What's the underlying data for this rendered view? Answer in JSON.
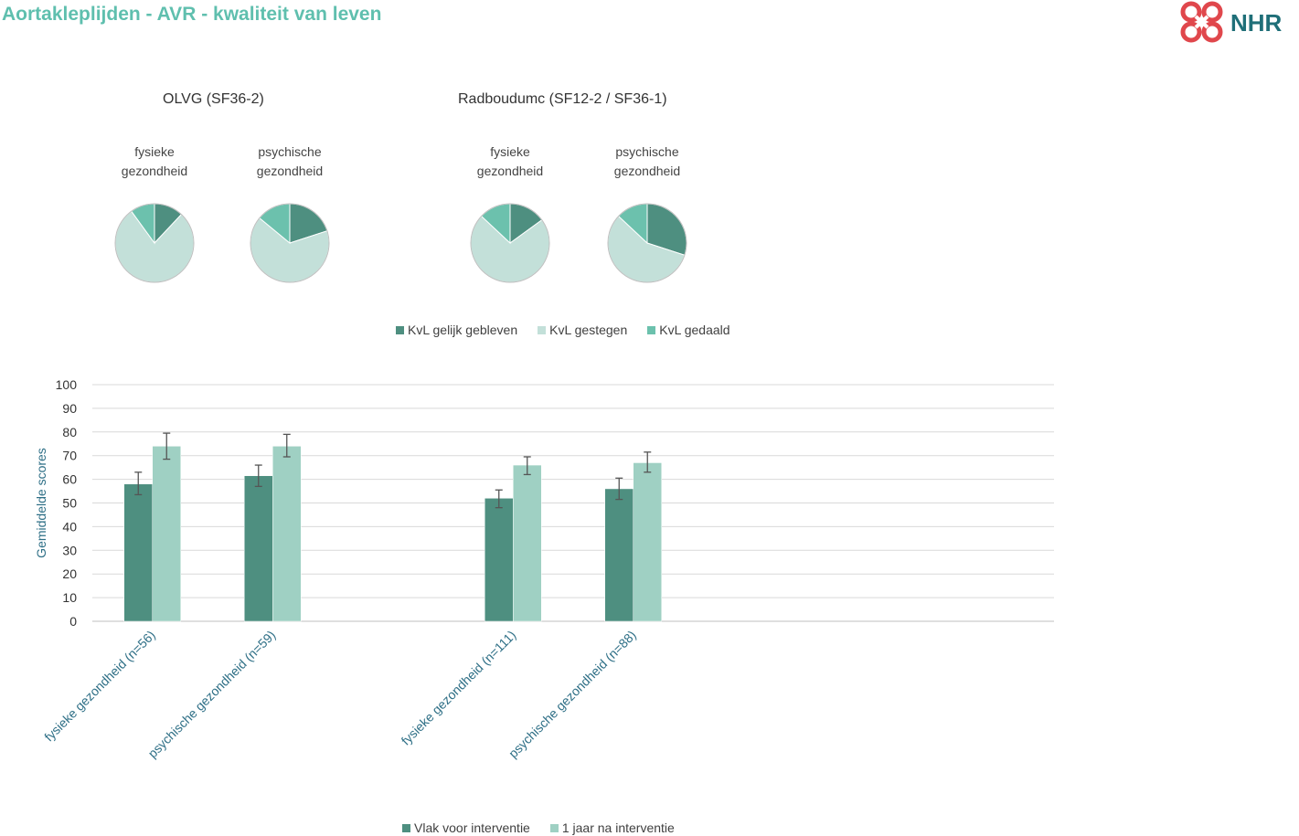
{
  "header": {
    "title": "Aortakleplijden - AVR - kwaliteit van leven",
    "logo_text": "NHR"
  },
  "colors": {
    "title": "#5fbfae",
    "gelijk": "#4e8f80",
    "gestegen": "#c3e0d9",
    "gedaald": "#6cc1ad",
    "voor": "#4e8f80",
    "na": "#9fd0c3",
    "logo_red": "#e0474c",
    "logo_teal": "#1f6f78"
  },
  "chart_data": [
    {
      "type": "pie",
      "group": "OLVG (SF36-2)",
      "title": "fysieke gezondheid",
      "labels": [
        "KvL gelijk gebleven",
        "KvL gestegen",
        "KvL gedaald"
      ],
      "values": [
        12,
        78,
        10
      ]
    },
    {
      "type": "pie",
      "group": "OLVG (SF36-2)",
      "title": "psychische gezondheid",
      "labels": [
        "KvL gelijk gebleven",
        "KvL gestegen",
        "KvL gedaald"
      ],
      "values": [
        20,
        66,
        14
      ]
    },
    {
      "type": "pie",
      "group": "Radboudumc (SF12-2 / SF36-1)",
      "title": "fysieke gezondheid",
      "labels": [
        "KvL gelijk gebleven",
        "KvL gestegen",
        "KvL gedaald"
      ],
      "values": [
        15,
        72,
        13
      ]
    },
    {
      "type": "pie",
      "group": "Radboudumc (SF12-2 / SF36-1)",
      "title": "psychische gezondheid",
      "labels": [
        "KvL gelijk gebleven",
        "KvL gestegen",
        "KvL gedaald"
      ],
      "values": [
        30,
        57,
        13
      ]
    },
    {
      "type": "bar",
      "categories": [
        "fysieke gezondheid (n=56)",
        "psychische gezondheid (n=59)",
        "",
        "fysieke gezondheid (n=111)",
        "psychische gezondheid (n=88)",
        "",
        "",
        ""
      ],
      "series": [
        {
          "name": "Vlak voor interventie",
          "values": [
            58,
            61.5,
            null,
            52,
            56,
            null,
            null,
            null
          ],
          "err": [
            [
              53.5,
              63
            ],
            [
              57,
              66
            ],
            null,
            [
              48,
              55.5
            ],
            [
              51.5,
              60.5
            ],
            null,
            null,
            null
          ]
        },
        {
          "name": "1 jaar na interventie",
          "values": [
            74,
            74,
            null,
            66,
            67,
            null,
            null,
            null
          ],
          "err": [
            [
              68.5,
              79.5
            ],
            [
              69.5,
              79
            ],
            null,
            [
              62,
              69.5
            ],
            [
              63,
              71.5
            ],
            null,
            null,
            null
          ]
        }
      ],
      "ylabel": "Gemiddelde scores",
      "xlabel": "",
      "ylim": [
        0,
        100
      ],
      "yticks": [
        0,
        10,
        20,
        30,
        40,
        50,
        60,
        70,
        80,
        90,
        100
      ],
      "grid": true,
      "legend": "bottom"
    }
  ],
  "pie_groups": [
    "OLVG (SF36-2)",
    "Radboudumc (SF12-2 / SF36-1)"
  ],
  "pie_titles": [
    "fysieke gezondheid",
    "psychische gezondheid",
    "fysieke gezondheid",
    "psychische gezondheid"
  ],
  "pie_legend": [
    "KvL gelijk gebleven",
    "KvL gestegen",
    "KvL gedaald"
  ],
  "bar_legend": [
    "Vlak voor interventie",
    "1 jaar na interventie"
  ]
}
